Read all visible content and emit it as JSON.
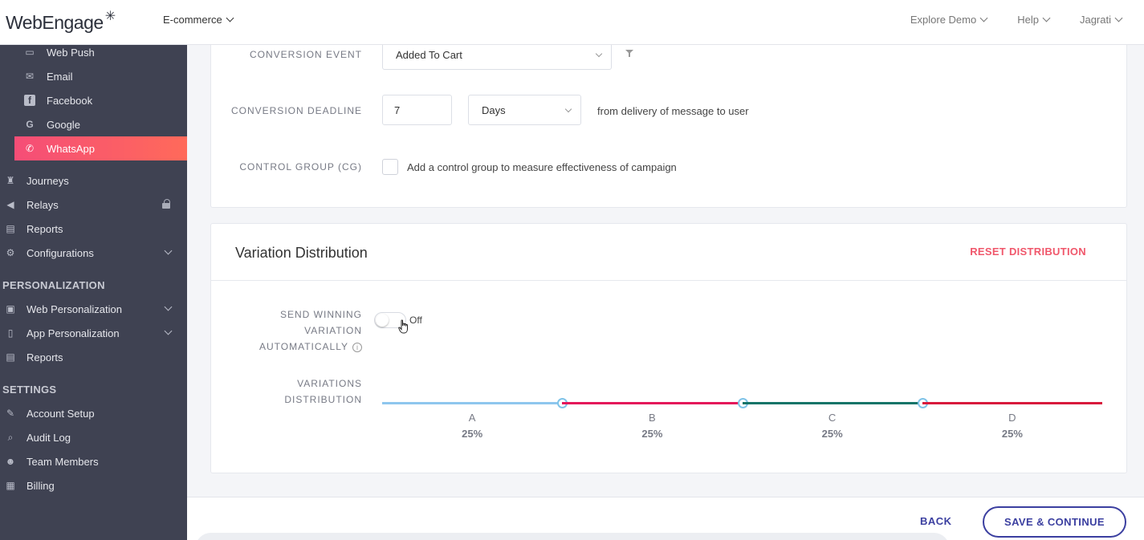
{
  "header": {
    "logo_text": "WebEngage",
    "project": "E-commerce",
    "nav": [
      "Explore Demo",
      "Help",
      "Jagrati"
    ]
  },
  "sidebar": {
    "channels": [
      {
        "label": "Web Push",
        "icon": "web-push-icon"
      },
      {
        "label": "Email",
        "icon": "email-icon"
      },
      {
        "label": "Facebook",
        "icon": "facebook-icon"
      },
      {
        "label": "Google",
        "icon": "google-icon"
      },
      {
        "label": "WhatsApp",
        "icon": "whatsapp-icon",
        "active": true
      }
    ],
    "main": [
      {
        "label": "Journeys",
        "icon": "journeys-icon"
      },
      {
        "label": "Relays",
        "icon": "relays-icon",
        "locked": true
      },
      {
        "label": "Reports",
        "icon": "reports-icon"
      },
      {
        "label": "Configurations",
        "icon": "configurations-icon",
        "expandable": true
      }
    ],
    "personalization_heading": "PERSONALIZATION",
    "personalization": [
      {
        "label": "Web Personalization",
        "icon": "web-personalization-icon",
        "expandable": true
      },
      {
        "label": "App Personalization",
        "icon": "app-personalization-icon",
        "expandable": true
      },
      {
        "label": "Reports",
        "icon": "reports-icon"
      }
    ],
    "settings_heading": "SETTINGS",
    "settings": [
      {
        "label": "Account Setup",
        "icon": "account-setup-icon"
      },
      {
        "label": "Audit Log",
        "icon": "audit-log-icon"
      },
      {
        "label": "Team Members",
        "icon": "team-members-icon"
      },
      {
        "label": "Billing",
        "icon": "billing-icon"
      }
    ],
    "active_color": "#f54d77"
  },
  "conversion": {
    "event_label": "CONVERSION EVENT",
    "event_value": "Added To Cart",
    "deadline_label": "CONVERSION DEADLINE",
    "deadline_value": "7",
    "deadline_unit": "Days",
    "deadline_suffix": "from delivery of message to user",
    "control_label": "CONTROL GROUP (CG)",
    "control_text": "Add a control group to measure effectiveness of campaign"
  },
  "variation": {
    "title": "Variation Distribution",
    "reset_label": "RESET DISTRIBUTION",
    "send_winning_label_lines": [
      "SEND WINNING",
      "VARIATION",
      "AUTOMATICALLY"
    ],
    "toggle_state": "Off",
    "distribution_label_lines": [
      "VARIATIONS",
      "DISTRIBUTION"
    ],
    "variants": [
      {
        "name": "A",
        "percent": "25%",
        "color": "#8ec6ee"
      },
      {
        "name": "B",
        "percent": "25%",
        "color": "#e4175a"
      },
      {
        "name": "C",
        "percent": "25%",
        "color": "#137468"
      },
      {
        "name": "D",
        "percent": "25%",
        "color": "#d81a3c"
      }
    ]
  },
  "footer": {
    "back_label": "BACK",
    "save_label": "SAVE & CONTINUE",
    "accent": "#3b3fa0"
  }
}
